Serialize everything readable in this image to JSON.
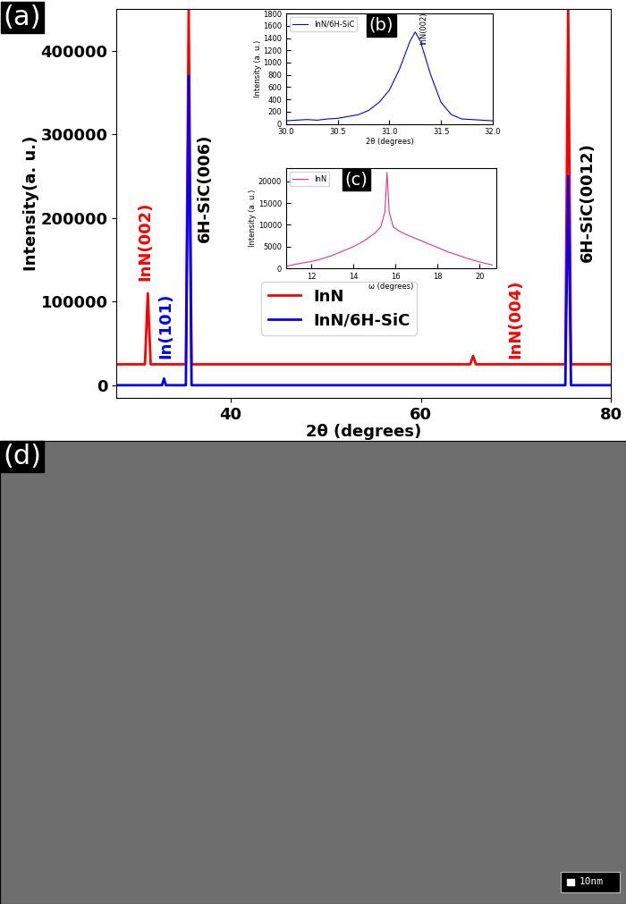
{
  "chart_data": [
    {
      "panel": "(a)",
      "type": "line",
      "xlabel": "2θ (degrees)",
      "ylabel": "Intensity(a. u.)",
      "xlim": [
        28,
        80
      ],
      "xticks": [
        40,
        60,
        80
      ],
      "ylim": [
        -15000,
        450000
      ],
      "yticks": [
        0,
        100000,
        200000,
        300000,
        400000
      ],
      "legend": "lower center",
      "series": [
        {
          "name": "InN",
          "color": "#ff0000",
          "x": [
            28,
            31.0,
            31.3,
            31.6,
            35.3,
            35.6,
            35.9,
            65.2,
            65.5,
            65.8,
            75.2,
            75.5,
            75.8,
            80
          ],
          "values": [
            25000,
            25000,
            110000,
            25000,
            25000,
            450000,
            25000,
            25000,
            35000,
            25000,
            25000,
            450000,
            25000,
            25000
          ]
        },
        {
          "name": "InN/6H-SiC",
          "color": "#0000ff",
          "x": [
            28,
            32.8,
            33.0,
            33.2,
            35.3,
            35.6,
            35.9,
            75.2,
            75.5,
            75.8,
            80
          ],
          "values": [
            0,
            0,
            8000,
            0,
            0,
            370000,
            0,
            0,
            250000,
            0,
            0
          ]
        }
      ],
      "annotations": [
        {
          "text": "InN(002)",
          "x": 31.3,
          "color": "#ff0000"
        },
        {
          "text": "In(101)",
          "x": 33.0,
          "color": "#0000ff"
        },
        {
          "text": "6H-SiC(006)",
          "x": 35.6,
          "color": "#000000"
        },
        {
          "text": "InN(004)",
          "x": 65.5,
          "color": "#ff0000"
        },
        {
          "text": "6H-SiC(0012)",
          "x": 75.5,
          "color": "#000000"
        }
      ]
    },
    {
      "panel": "(b)",
      "type": "line",
      "xlabel": "2θ (degrees)",
      "ylabel": "Intensity (a. u.)",
      "xlim": [
        30,
        32
      ],
      "xticks": [
        {
          "value": 30,
          "label": "30.0"
        },
        {
          "value": 30.5,
          "label": "30.5"
        },
        {
          "value": 31,
          "label": "31.0"
        },
        {
          "value": 31.5,
          "label": "31.5"
        },
        {
          "value": 32,
          "label": "32.0"
        }
      ],
      "ylim": [
        0,
        1800
      ],
      "yticks": [
        0,
        200,
        400,
        600,
        800,
        1000,
        1200,
        1400,
        1600,
        1800
      ],
      "legend": "upper left",
      "series": [
        {
          "name": "InN/6H-SiC",
          "color": "#0000ff",
          "x": [
            30.0,
            30.1,
            30.2,
            30.3,
            30.4,
            30.5,
            30.6,
            30.7,
            30.8,
            30.9,
            31.0,
            31.1,
            31.2,
            31.25,
            31.3,
            31.4,
            31.5,
            31.6,
            31.7,
            31.8,
            31.9,
            32.0
          ],
          "values": [
            50,
            60,
            70,
            60,
            80,
            90,
            120,
            150,
            220,
            350,
            550,
            900,
            1350,
            1500,
            1350,
            800,
            350,
            150,
            80,
            70,
            60,
            50
          ]
        }
      ],
      "annotations": [
        {
          "text": "InN(002)",
          "x": 31.25,
          "color": "#000000"
        }
      ]
    },
    {
      "panel": "(c)",
      "type": "line",
      "xlabel": "ω (degrees)",
      "ylabel": "Intensity (a. u.)",
      "xlim": [
        10.8,
        20.8
      ],
      "xticks": [
        12,
        14,
        16,
        18,
        20
      ],
      "ylim": [
        0,
        23000
      ],
      "yticks": [
        0,
        5000,
        10000,
        15000,
        20000
      ],
      "legend": "upper left",
      "series": [
        {
          "name": "InN",
          "color": "#e8328a",
          "x": [
            10.8,
            11.5,
            12,
            12.5,
            13,
            13.5,
            14,
            14.5,
            15,
            15.3,
            15.5,
            15.6,
            15.7,
            15.9,
            16.2,
            16.5,
            17,
            17.5,
            18,
            18.5,
            19,
            19.5,
            20,
            20.6
          ],
          "values": [
            500,
            1200,
            1600,
            2200,
            3000,
            4000,
            5000,
            6300,
            8000,
            9500,
            13000,
            22000,
            13000,
            9500,
            8500,
            7800,
            6800,
            5800,
            4800,
            3800,
            3000,
            2200,
            1500,
            800
          ]
        }
      ]
    }
  ],
  "image": {
    "panel": "(d)",
    "scale_bar": "10nm"
  }
}
